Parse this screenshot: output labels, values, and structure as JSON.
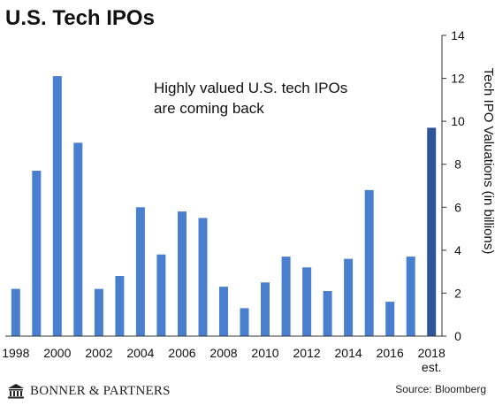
{
  "chart_data": {
    "type": "bar",
    "title": "U.S. Tech IPOs",
    "annotation": [
      "Highly valued U.S. tech IPOs",
      "are coming back"
    ],
    "ylabel": "Tech IPO Valuations (in billions)",
    "xlabel": "",
    "ylim": [
      0,
      14
    ],
    "yticks": [
      0,
      2,
      4,
      6,
      8,
      10,
      12,
      14
    ],
    "y_axis_position": "right",
    "grid": false,
    "legend": "none",
    "categories": [
      "1998",
      "1999",
      "2000",
      "2001",
      "2002",
      "2003",
      "2004",
      "2005",
      "2006",
      "2007",
      "2008",
      "2009",
      "2010",
      "2011",
      "2012",
      "2013",
      "2014",
      "2015",
      "2016",
      "2017",
      "2018 est."
    ],
    "x_tick_labels": [
      "1998",
      "2000",
      "2002",
      "2004",
      "2006",
      "2008",
      "2010",
      "2012",
      "2014",
      "2016",
      "2018"
    ],
    "x_tick_sublabel": "est.",
    "values": [
      2.2,
      7.7,
      12.1,
      9.0,
      2.2,
      2.8,
      6.0,
      3.8,
      5.8,
      5.5,
      2.3,
      1.3,
      2.5,
      3.7,
      3.2,
      2.1,
      3.6,
      6.8,
      1.6,
      3.7,
      9.7
    ],
    "colors": {
      "bar": "#4a7fd0",
      "bar_estimate": "#2e5499",
      "axis": "#333333",
      "text": "#111111"
    }
  },
  "footer": {
    "brand": "BONNER & PARTNERS",
    "source": "Source: Bloomberg",
    "brand_icon": "bank-building-icon"
  }
}
